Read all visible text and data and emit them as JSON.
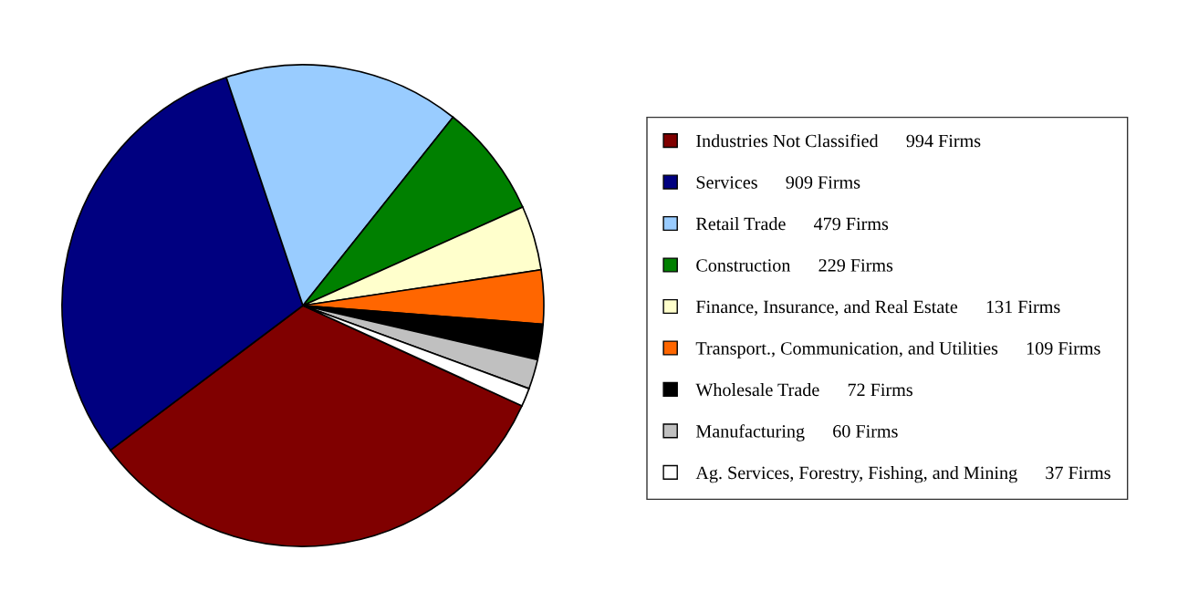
{
  "chart_data": {
    "type": "pie",
    "categories": [
      "Industries Not Classified",
      "Services",
      "Retail Trade",
      "Construction",
      "Finance, Insurance, and Real Estate",
      "Transport., Communication, and Utilities",
      "Wholesale Trade",
      "Manufacturing",
      "Ag. Services, Forestry, Fishing, and Mining"
    ],
    "values": [
      994,
      909,
      479,
      229,
      131,
      109,
      72,
      60,
      37
    ],
    "value_labels": [
      "994 Firms",
      "909 Firms",
      "479 Firms",
      "229 Firms",
      "131 Firms",
      "109 Firms",
      "72 Firms",
      "60 Firms",
      "37 Firms"
    ],
    "colors": [
      "#800000",
      "#000080",
      "#99ccff",
      "#008000",
      "#ffffcc",
      "#ff6600",
      "#000000",
      "#c0c0c0",
      "#ffffff"
    ],
    "legend": "right"
  }
}
